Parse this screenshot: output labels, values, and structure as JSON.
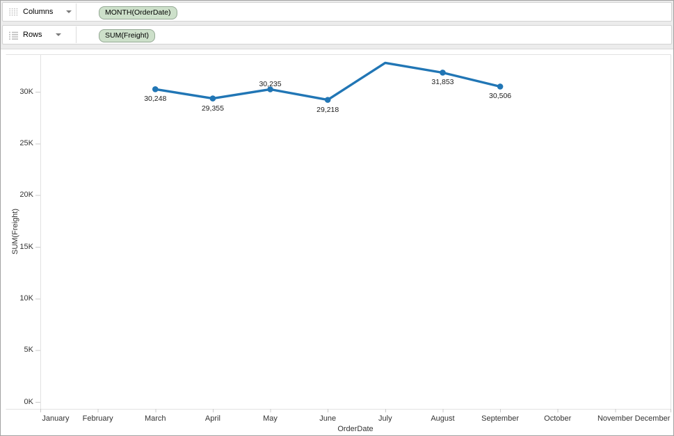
{
  "shelves": {
    "columns": {
      "label": "Columns",
      "pill": "MONTH(OrderDate)"
    },
    "rows": {
      "label": "Rows",
      "pill": "SUM(Freight)"
    }
  },
  "icons": {
    "columns_icon": "columns-grid",
    "rows_icon": "rows-list",
    "dropdown_caret": "down-triangle"
  },
  "pill_colors": {
    "fill": "#cde0ca",
    "border": "#94a894"
  },
  "chart_data": {
    "type": "line",
    "title": "",
    "xlabel": "OrderDate",
    "ylabel": "SUM(Freight)",
    "x_categories": [
      "January",
      "February",
      "March",
      "April",
      "May",
      "June",
      "July",
      "August",
      "September",
      "October",
      "November",
      "December"
    ],
    "y_ticks": [
      "0K",
      "5K",
      "10K",
      "15K",
      "20K",
      "25K",
      "30K"
    ],
    "y_tick_values": [
      0,
      5000,
      10000,
      15000,
      20000,
      25000,
      30000
    ],
    "ylim": [
      0,
      33600
    ],
    "grid": "none",
    "legend": "none",
    "series": [
      {
        "name": "SUM(Freight)",
        "color": "#2176b5",
        "points": [
          {
            "month": "March",
            "value": 30248,
            "label": "30,248",
            "label_position": "below",
            "marker": true
          },
          {
            "month": "April",
            "value": 29355,
            "label": "29,355",
            "label_position": "below",
            "marker": true
          },
          {
            "month": "May",
            "value": 30235,
            "label": "30,235",
            "label_position": "above",
            "marker": true
          },
          {
            "month": "June",
            "value": 29218,
            "label": "29,218",
            "label_position": "below",
            "marker": true
          },
          {
            "month": "July",
            "value": 32800,
            "label": null,
            "label_position": null,
            "marker": false
          },
          {
            "month": "August",
            "value": 31853,
            "label": "31,853",
            "label_position": "below",
            "marker": true
          },
          {
            "month": "September",
            "value": 30506,
            "label": "30,506",
            "label_position": "below",
            "marker": true
          }
        ]
      }
    ]
  }
}
